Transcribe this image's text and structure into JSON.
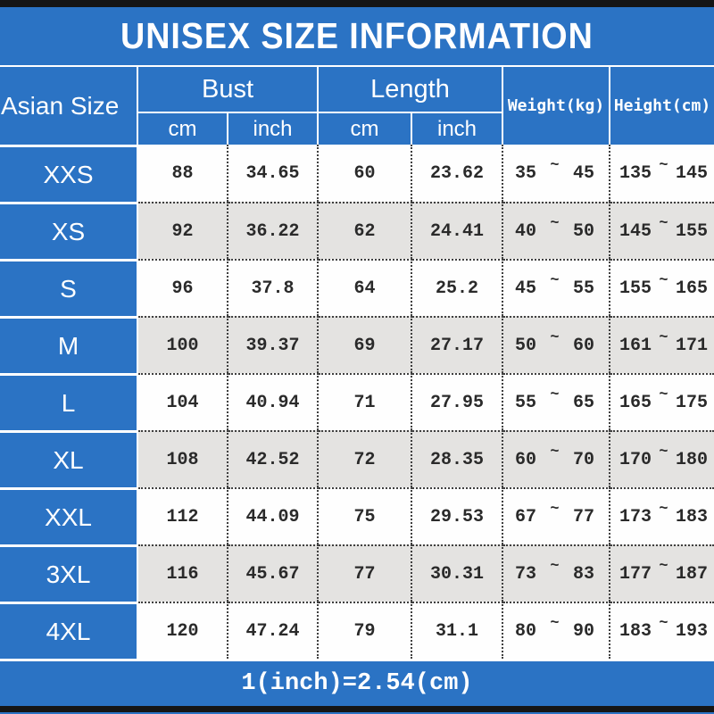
{
  "title": "UNISEX SIZE INFORMATION",
  "table": {
    "corner_header": "Asian Size",
    "bust_header": "Bust",
    "length_header": "Length",
    "cm_label": "cm",
    "inch_label": "inch",
    "weight_header": "Weight(kg)",
    "height_header": "Height(cm)",
    "tilde": "~",
    "rows": [
      {
        "size": "XXS",
        "bust_cm": "88",
        "bust_inch": "34.65",
        "length_cm": "60",
        "length_inch": "23.62",
        "weight_min": "35",
        "weight_max": "45",
        "height_min": "135",
        "height_max": "145"
      },
      {
        "size": "XS",
        "bust_cm": "92",
        "bust_inch": "36.22",
        "length_cm": "62",
        "length_inch": "24.41",
        "weight_min": "40",
        "weight_max": "50",
        "height_min": "145",
        "height_max": "155"
      },
      {
        "size": "S",
        "bust_cm": "96",
        "bust_inch": "37.8",
        "length_cm": "64",
        "length_inch": "25.2",
        "weight_min": "45",
        "weight_max": "55",
        "height_min": "155",
        "height_max": "165"
      },
      {
        "size": "M",
        "bust_cm": "100",
        "bust_inch": "39.37",
        "length_cm": "69",
        "length_inch": "27.17",
        "weight_min": "50",
        "weight_max": "60",
        "height_min": "161",
        "height_max": "171"
      },
      {
        "size": "L",
        "bust_cm": "104",
        "bust_inch": "40.94",
        "length_cm": "71",
        "length_inch": "27.95",
        "weight_min": "55",
        "weight_max": "65",
        "height_min": "165",
        "height_max": "175"
      },
      {
        "size": "XL",
        "bust_cm": "108",
        "bust_inch": "42.52",
        "length_cm": "72",
        "length_inch": "28.35",
        "weight_min": "60",
        "weight_max": "70",
        "height_min": "170",
        "height_max": "180"
      },
      {
        "size": "XXL",
        "bust_cm": "112",
        "bust_inch": "44.09",
        "length_cm": "75",
        "length_inch": "29.53",
        "weight_min": "67",
        "weight_max": "77",
        "height_min": "173",
        "height_max": "183"
      },
      {
        "size": "3XL",
        "bust_cm": "116",
        "bust_inch": "45.67",
        "length_cm": "77",
        "length_inch": "30.31",
        "weight_min": "73",
        "weight_max": "83",
        "height_min": "177",
        "height_max": "187"
      },
      {
        "size": "4XL",
        "bust_cm": "120",
        "bust_inch": "47.24",
        "length_cm": "79",
        "length_inch": "31.1",
        "weight_min": "80",
        "weight_max": "90",
        "height_min": "183",
        "height_max": "193"
      }
    ]
  },
  "footer_note": "1(inch)=2.54(cm)",
  "colors": {
    "blue": "#2b73c4",
    "row_bg": "#fefefe",
    "alt_row_bg": "#e4e3e1",
    "edge_bar": "#151515",
    "number_text": "#2a2a2a",
    "header_text": "#ffffff"
  }
}
